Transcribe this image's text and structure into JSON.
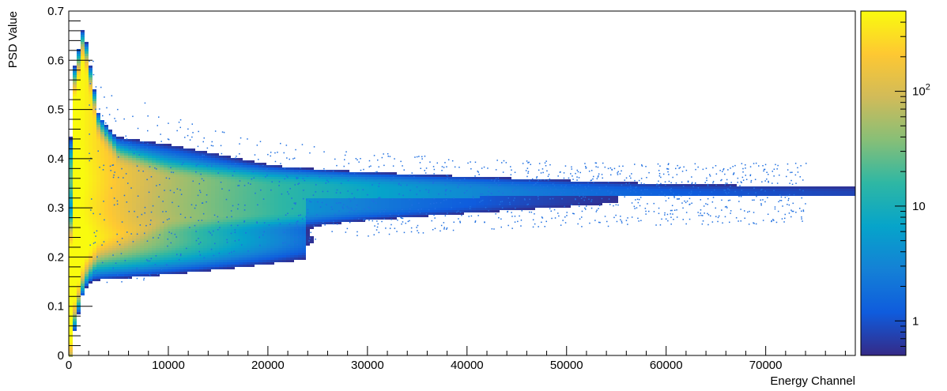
{
  "chart_data": {
    "type": "heatmap",
    "title": "",
    "xlabel": "Energy Channel",
    "ylabel": "PSD Value",
    "xlim": [
      0,
      79000
    ],
    "ylim": [
      0,
      0.7
    ],
    "x_ticks": [
      0,
      10000,
      20000,
      30000,
      40000,
      50000,
      60000,
      70000
    ],
    "x_tick_labels": [
      "0",
      "10000",
      "20000",
      "30000",
      "40000",
      "50000",
      "60000",
      "70000"
    ],
    "y_ticks": [
      0,
      0.1,
      0.2,
      0.3,
      0.4,
      0.5,
      0.6,
      0.7
    ],
    "y_tick_labels": [
      "0",
      "0.1",
      "0.2",
      "0.3",
      "0.4",
      "0.5",
      "0.6",
      "0.7"
    ],
    "z_scale": "log",
    "z_range": [
      0.5,
      500
    ],
    "colorbar": {
      "ticks": [
        1,
        10,
        100
      ],
      "labels": [
        {
          "base": "1",
          "exp": ""
        },
        {
          "base": "10",
          "exp": ""
        },
        {
          "base": "10",
          "exp": "2"
        }
      ]
    },
    "colormap": [
      "#352a87",
      "#0f5cdd",
      "#1481d6",
      "#06a4ca",
      "#2eb7a4",
      "#87bf77",
      "#d1bb59",
      "#fec832",
      "#f9fb0e"
    ],
    "grid": false,
    "legend": "none",
    "bands": [
      {
        "name": "upper",
        "points": [
          [
            500,
            0.5
          ],
          [
            1500,
            0.6
          ],
          [
            3000,
            0.43
          ],
          [
            5000,
            0.38
          ],
          [
            10000,
            0.36
          ],
          [
            20000,
            0.345
          ],
          [
            30000,
            0.34
          ],
          [
            45000,
            0.335
          ],
          [
            60000,
            0.33
          ],
          [
            75000,
            0.33
          ]
        ]
      },
      {
        "name": "lower",
        "points": [
          [
            500,
            0.12
          ],
          [
            1500,
            0.2
          ],
          [
            3000,
            0.24
          ],
          [
            5000,
            0.25
          ],
          [
            10000,
            0.28
          ],
          [
            20000,
            0.29
          ],
          [
            30000,
            0.3
          ],
          [
            45000,
            0.31
          ],
          [
            60000,
            0.315
          ],
          [
            75000,
            0.32
          ]
        ]
      }
    ]
  }
}
